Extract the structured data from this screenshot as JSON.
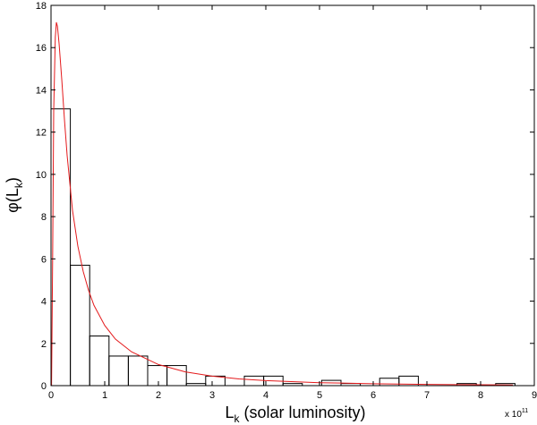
{
  "chart_data": {
    "type": "bar",
    "subtype": "histogram-with-fit-curve",
    "xlabel": {
      "main": "L",
      "sub": "k",
      "rest": "  (solar luminosity)"
    },
    "ylabel": {
      "pre": "φ(L",
      "sub": "k",
      "post": ")"
    },
    "x_multiplier": {
      "text": "x 10",
      "exponent": "11"
    },
    "xlim": [
      0,
      9
    ],
    "ylim": [
      0,
      18
    ],
    "x_ticks": [
      0,
      1,
      2,
      3,
      4,
      5,
      6,
      7,
      8,
      9
    ],
    "y_ticks": [
      0,
      2,
      4,
      6,
      8,
      10,
      12,
      14,
      16,
      18
    ],
    "grid": false,
    "bins": [
      {
        "x0": 0.0,
        "x1": 0.36,
        "value": 13.1
      },
      {
        "x0": 0.36,
        "x1": 0.72,
        "value": 5.7
      },
      {
        "x0": 0.72,
        "x1": 1.08,
        "value": 2.35
      },
      {
        "x0": 1.08,
        "x1": 1.44,
        "value": 1.4
      },
      {
        "x0": 1.44,
        "x1": 1.8,
        "value": 1.4
      },
      {
        "x0": 1.8,
        "x1": 2.16,
        "value": 0.95
      },
      {
        "x0": 2.16,
        "x1": 2.52,
        "value": 0.95
      },
      {
        "x0": 2.52,
        "x1": 2.88,
        "value": 0.1
      },
      {
        "x0": 2.88,
        "x1": 3.24,
        "value": 0.45
      },
      {
        "x0": 3.24,
        "x1": 3.6,
        "value": 0.0
      },
      {
        "x0": 3.6,
        "x1": 3.96,
        "value": 0.45
      },
      {
        "x0": 3.96,
        "x1": 4.32,
        "value": 0.45
      },
      {
        "x0": 4.32,
        "x1": 4.68,
        "value": 0.1
      },
      {
        "x0": 4.68,
        "x1": 5.04,
        "value": 0.0
      },
      {
        "x0": 5.04,
        "x1": 5.4,
        "value": 0.25
      },
      {
        "x0": 5.4,
        "x1": 5.76,
        "value": 0.1
      },
      {
        "x0": 5.76,
        "x1": 6.12,
        "value": 0.0
      },
      {
        "x0": 6.12,
        "x1": 6.48,
        "value": 0.35
      },
      {
        "x0": 6.48,
        "x1": 6.84,
        "value": 0.45
      },
      {
        "x0": 6.84,
        "x1": 7.2,
        "value": 0.0
      },
      {
        "x0": 7.2,
        "x1": 7.56,
        "value": 0.0
      },
      {
        "x0": 7.56,
        "x1": 7.92,
        "value": 0.1
      },
      {
        "x0": 7.92,
        "x1": 8.28,
        "value": 0.0
      },
      {
        "x0": 8.28,
        "x1": 8.64,
        "value": 0.1
      }
    ],
    "fit_curve": {
      "color": "#e41a1c",
      "points": [
        [
          0.01,
          0.0
        ],
        [
          0.03,
          6.0
        ],
        [
          0.05,
          13.0
        ],
        [
          0.08,
          16.5
        ],
        [
          0.1,
          17.2
        ],
        [
          0.12,
          17.0
        ],
        [
          0.15,
          16.2
        ],
        [
          0.2,
          14.5
        ],
        [
          0.25,
          12.6
        ],
        [
          0.3,
          10.9
        ],
        [
          0.4,
          8.3
        ],
        [
          0.5,
          6.6
        ],
        [
          0.6,
          5.4
        ],
        [
          0.7,
          4.5
        ],
        [
          0.8,
          3.8
        ],
        [
          1.0,
          2.85
        ],
        [
          1.2,
          2.2
        ],
        [
          1.5,
          1.6
        ],
        [
          2.0,
          1.0
        ],
        [
          2.5,
          0.65
        ],
        [
          3.0,
          0.45
        ],
        [
          3.5,
          0.32
        ],
        [
          4.0,
          0.24
        ],
        [
          5.0,
          0.14
        ],
        [
          6.0,
          0.09
        ],
        [
          7.0,
          0.06
        ],
        [
          8.0,
          0.04
        ],
        [
          8.6,
          0.03
        ]
      ]
    },
    "bar_color": "#000000"
  }
}
